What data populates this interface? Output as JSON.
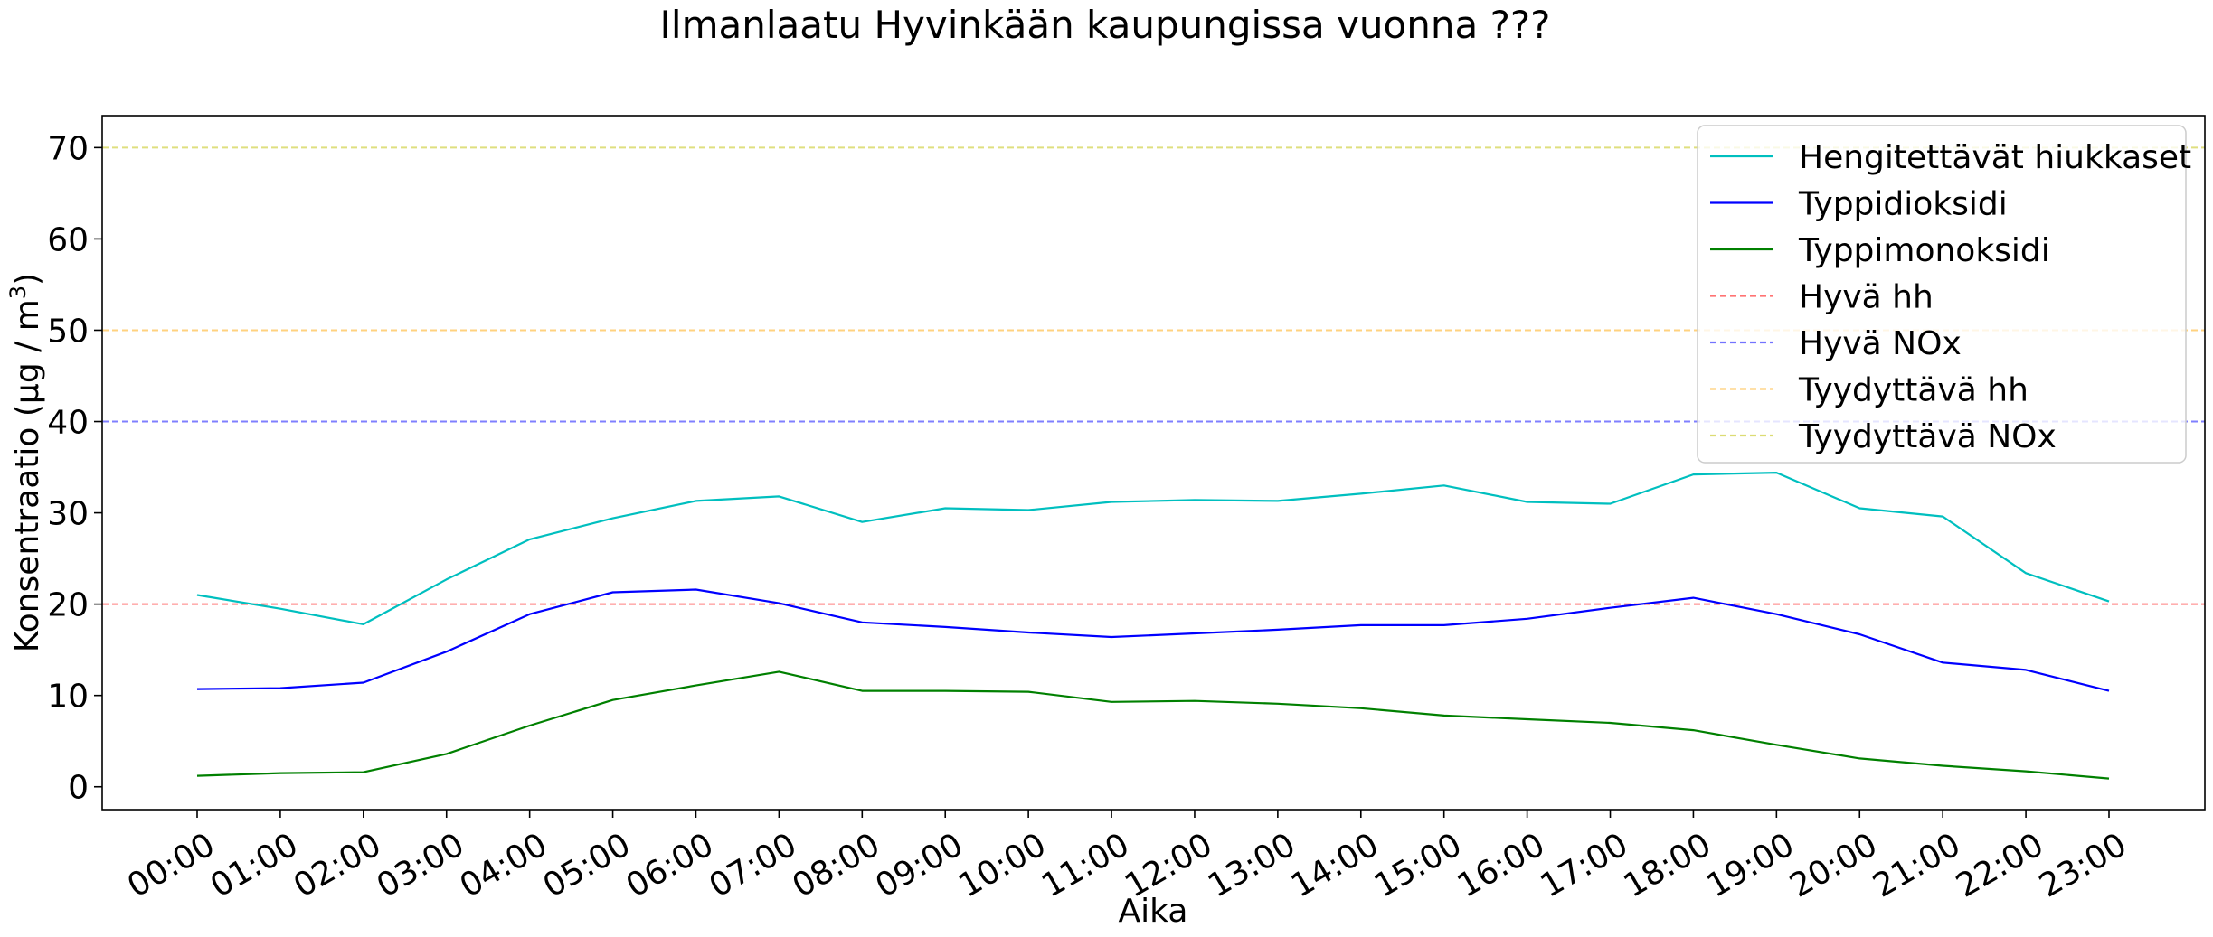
{
  "chart_data": {
    "type": "line",
    "title": "Ilmanlaatu Hyvinkään kaupungissa vuonna ???",
    "xlabel": "Aika",
    "ylabel_main": "Konsentraatio (μg / m",
    "ylabel_sup": "3",
    "ylabel_close": ")",
    "categories": [
      "00:00",
      "01:00",
      "02:00",
      "03:00",
      "04:00",
      "05:00",
      "06:00",
      "07:00",
      "08:00",
      "09:00",
      "10:00",
      "11:00",
      "12:00",
      "13:00",
      "14:00",
      "15:00",
      "16:00",
      "17:00",
      "18:00",
      "19:00",
      "20:00",
      "21:00",
      "22:00",
      "23:00"
    ],
    "ylim": [
      -2.5,
      73.5
    ],
    "yticks": [
      0,
      10,
      20,
      30,
      40,
      50,
      60,
      70
    ],
    "grid": false,
    "legend_position": "upper right",
    "series": [
      {
        "name": "Hengitettävät hiukkaset",
        "color": "#00bfbf",
        "style": "solid",
        "values": [
          21.0,
          19.5,
          17.8,
          22.7,
          27.1,
          29.4,
          31.3,
          31.8,
          29.0,
          30.5,
          30.3,
          31.2,
          31.4,
          31.3,
          32.1,
          33.0,
          31.2,
          31.0,
          34.2,
          34.4,
          30.5,
          29.6,
          23.4,
          20.3
        ]
      },
      {
        "name": "Typpidioksidi",
        "color": "#0000ff",
        "style": "solid",
        "values": [
          10.7,
          10.8,
          11.4,
          14.8,
          18.9,
          21.3,
          21.6,
          20.1,
          18.0,
          17.5,
          16.9,
          16.4,
          16.8,
          17.2,
          17.7,
          17.7,
          18.4,
          19.6,
          20.7,
          18.9,
          16.7,
          13.6,
          12.8,
          10.5
        ]
      },
      {
        "name": "Typpimonoksidi",
        "color": "#008000",
        "style": "solid",
        "values": [
          1.2,
          1.5,
          1.6,
          3.6,
          6.7,
          9.5,
          11.1,
          12.6,
          10.5,
          10.5,
          10.4,
          9.3,
          9.4,
          9.1,
          8.6,
          7.8,
          7.4,
          7.0,
          6.2,
          4.6,
          3.1,
          2.3,
          1.7,
          0.9
        ]
      },
      {
        "name": "Hyvä hh",
        "color": "#ff0000",
        "style": "dashed",
        "hline": 20
      },
      {
        "name": "Hyvä NOx",
        "color": "#0000ff",
        "style": "dashed",
        "hline": 40
      },
      {
        "name": "Tyydyttävä hh",
        "color": "#ffa500",
        "style": "dashed",
        "hline": 50
      },
      {
        "name": "Tyydyttävä NOx",
        "color": "#bfbf00",
        "style": "dashed",
        "hline": 70
      }
    ]
  }
}
